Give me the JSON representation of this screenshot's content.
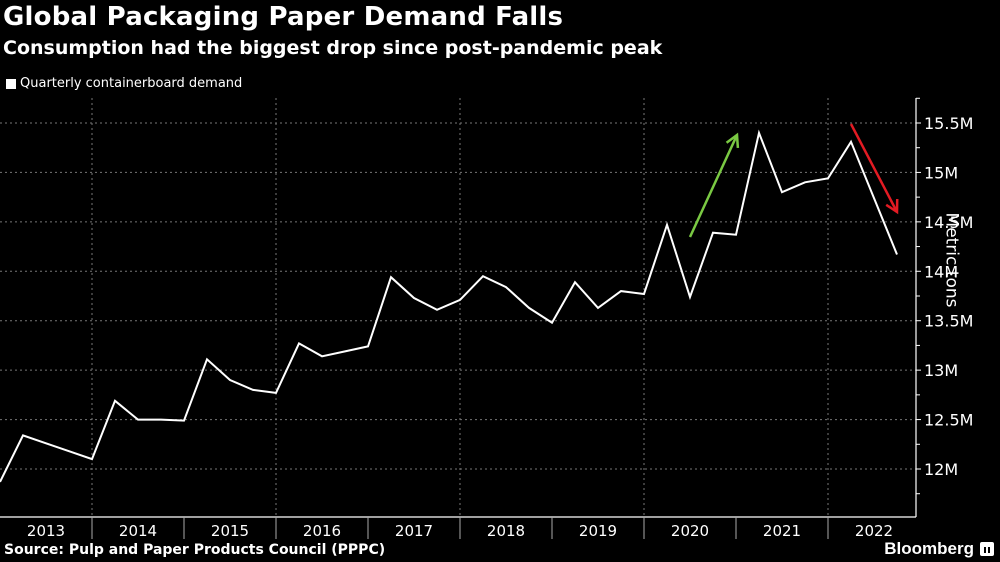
{
  "header": {
    "title": "Global Packaging Paper Demand Falls",
    "subtitle": "Consumption had the biggest drop since post-pandemic peak"
  },
  "legend": {
    "label": "Quarterly containerboard demand"
  },
  "footer": {
    "source": "Source: Pulp and Paper Products Council (PPPC)",
    "brand": "Bloomberg"
  },
  "colors": {
    "background": "#000000",
    "line": "#ffffff",
    "up_arrow": "#7ac943",
    "down_arrow": "#e31b23",
    "grid": "#777777"
  },
  "chart_data": {
    "type": "line",
    "title": "Global Packaging Paper Demand Falls",
    "subtitle": "Consumption had the biggest drop since post-pandemic peak",
    "xlabel": "",
    "ylabel": "Metric tons",
    "ylim": [
      11.6,
      15.75
    ],
    "y_ticks": [
      12,
      12.5,
      13,
      13.5,
      14,
      14.5,
      15,
      15.5
    ],
    "y_tick_labels": [
      "12M",
      "12.5M",
      "13M",
      "13.5M",
      "14M",
      "14.5M",
      "15M",
      "15.5M"
    ],
    "x_tick_labels": [
      "2013",
      "2014",
      "2015",
      "2016",
      "2017",
      "2018",
      "2019",
      "2020",
      "2021",
      "2022"
    ],
    "grid": true,
    "legend_position": "top-left",
    "series": [
      {
        "name": "Quarterly containerboard demand",
        "unit": "million metric tons",
        "x": [
          "2013Q1",
          "2013Q2",
          "2013Q3",
          "2013Q4",
          "2014Q1",
          "2014Q2",
          "2014Q3",
          "2014Q4",
          "2015Q1",
          "2015Q2",
          "2015Q3",
          "2015Q4",
          "2016Q1",
          "2016Q2",
          "2016Q3",
          "2016Q4",
          "2017Q1",
          "2017Q2",
          "2017Q3",
          "2017Q4",
          "2018Q1",
          "2018Q2",
          "2018Q3",
          "2018Q4",
          "2019Q1",
          "2019Q2",
          "2019Q3",
          "2019Q4",
          "2020Q1",
          "2020Q2",
          "2020Q3",
          "2020Q4",
          "2021Q1",
          "2021Q2",
          "2021Q3",
          "2021Q4",
          "2022Q1",
          "2022Q2",
          "2022Q3",
          "2022Q4"
        ],
        "values": [
          11.87,
          12.34,
          12.26,
          12.18,
          12.1,
          12.69,
          12.5,
          12.5,
          12.49,
          13.11,
          12.9,
          12.8,
          12.77,
          13.27,
          13.14,
          13.19,
          13.24,
          13.94,
          13.73,
          13.61,
          13.71,
          13.95,
          13.84,
          13.63,
          13.48,
          13.89,
          13.63,
          13.8,
          13.77,
          14.47,
          13.74,
          14.39,
          14.37,
          15.4,
          14.8,
          14.9,
          14.94,
          15.31,
          14.74,
          14.17
        ]
      }
    ],
    "annotations": [
      {
        "type": "arrow",
        "direction": "up",
        "color": "#7ac943",
        "from": [
          690,
          237
        ],
        "to": [
          737,
          135
        ]
      },
      {
        "type": "arrow",
        "direction": "down",
        "color": "#e31b23",
        "from": [
          851,
          124
        ],
        "to": [
          897,
          212
        ]
      }
    ]
  }
}
